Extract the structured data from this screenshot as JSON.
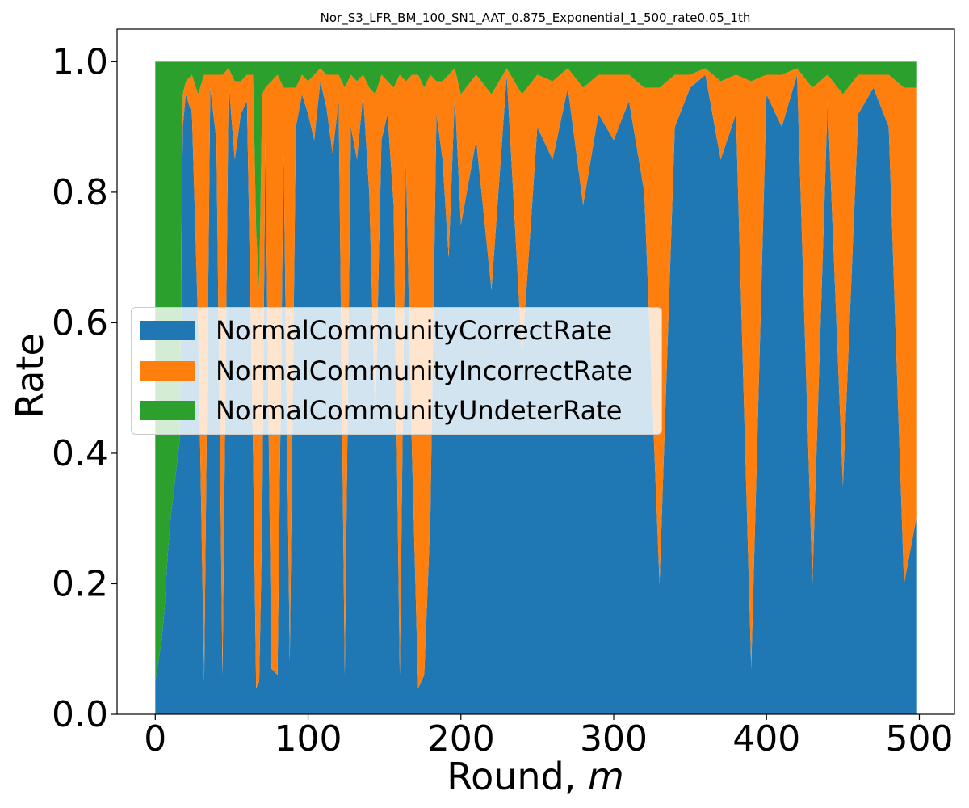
{
  "chart_data": {
    "type": "area",
    "stacked": true,
    "title": "Nor_S3_LFR_BM_100_SN1_AAT_0.875_Exponential_1_500_rate0.05_1th",
    "xlabel": "Round, ",
    "xlabel_italic": "m",
    "ylabel": "Rate",
    "xlim": [
      -25,
      523
    ],
    "ylim": [
      0.0,
      1.05
    ],
    "xticks": [
      0,
      100,
      200,
      300,
      400,
      500
    ],
    "xtick_labels": [
      "0",
      "100",
      "200",
      "300",
      "400",
      "500"
    ],
    "yticks": [
      0.0,
      0.2,
      0.4,
      0.6,
      0.8,
      1.0
    ],
    "ytick_labels": [
      "0.0",
      "0.2",
      "0.4",
      "0.6",
      "0.8",
      "1.0"
    ],
    "grid": false,
    "legend_position": "center-left",
    "x": [
      0,
      2,
      4,
      6,
      8,
      10,
      12,
      14,
      16,
      18,
      20,
      24,
      28,
      32,
      36,
      40,
      44,
      48,
      52,
      56,
      60,
      64,
      66,
      68,
      70,
      72,
      76,
      80,
      84,
      88,
      92,
      96,
      100,
      104,
      108,
      112,
      116,
      120,
      124,
      128,
      132,
      136,
      140,
      144,
      148,
      152,
      156,
      160,
      164,
      168,
      172,
      176,
      180,
      184,
      188,
      192,
      196,
      200,
      210,
      220,
      230,
      240,
      250,
      260,
      270,
      280,
      290,
      300,
      310,
      320,
      330,
      340,
      350,
      360,
      370,
      380,
      390,
      400,
      410,
      420,
      430,
      440,
      450,
      460,
      470,
      480,
      490,
      498
    ],
    "series": [
      {
        "name": "NormalCommunityCorrectRate",
        "color": "#1f77b4",
        "values": [
          0.05,
          0.08,
          0.11,
          0.16,
          0.24,
          0.3,
          0.34,
          0.38,
          0.42,
          0.9,
          0.95,
          0.92,
          0.6,
          0.05,
          0.96,
          0.88,
          0.06,
          0.97,
          0.85,
          0.92,
          0.94,
          0.4,
          0.04,
          0.05,
          0.3,
          0.88,
          0.07,
          0.06,
          0.86,
          0.08,
          0.9,
          0.95,
          0.92,
          0.88,
          0.97,
          0.93,
          0.86,
          0.94,
          0.06,
          0.9,
          0.85,
          0.95,
          0.8,
          0.45,
          0.88,
          0.92,
          0.78,
          0.06,
          0.85,
          0.4,
          0.04,
          0.06,
          0.3,
          0.92,
          0.85,
          0.7,
          0.95,
          0.75,
          0.88,
          0.65,
          0.98,
          0.55,
          0.9,
          0.85,
          0.96,
          0.78,
          0.92,
          0.88,
          0.94,
          0.8,
          0.2,
          0.9,
          0.96,
          0.98,
          0.85,
          0.92,
          0.07,
          0.95,
          0.9,
          0.98,
          0.2,
          0.94,
          0.35,
          0.92,
          0.96,
          0.9,
          0.2,
          0.3
        ],
        "note": "Highly oscillating series; values sampled approximately"
      },
      {
        "name": "NormalCommunityIncorrectRate",
        "color": "#ff7f0e",
        "values": [
          0.0,
          0.0,
          0.0,
          0.0,
          0.0,
          0.0,
          0.0,
          0.0,
          0.0,
          0.05,
          0.02,
          0.06,
          0.35,
          0.93,
          0.02,
          0.1,
          0.92,
          0.02,
          0.12,
          0.05,
          0.04,
          0.58,
          0.7,
          0.6,
          0.65,
          0.08,
          0.9,
          0.92,
          0.1,
          0.88,
          0.06,
          0.03,
          0.05,
          0.1,
          0.02,
          0.05,
          0.12,
          0.04,
          0.9,
          0.08,
          0.12,
          0.03,
          0.16,
          0.5,
          0.1,
          0.05,
          0.18,
          0.92,
          0.12,
          0.58,
          0.94,
          0.9,
          0.68,
          0.05,
          0.12,
          0.28,
          0.04,
          0.2,
          0.1,
          0.3,
          0.01,
          0.4,
          0.08,
          0.12,
          0.03,
          0.18,
          0.06,
          0.1,
          0.04,
          0.16,
          0.76,
          0.08,
          0.02,
          0.01,
          0.12,
          0.06,
          0.9,
          0.03,
          0.08,
          0.01,
          0.76,
          0.04,
          0.6,
          0.06,
          0.02,
          0.08,
          0.76,
          0.66
        ]
      },
      {
        "name": "NormalCommunityUndeterRate",
        "color": "#2ca02c",
        "values": [
          0.95,
          0.92,
          0.89,
          0.84,
          0.76,
          0.7,
          0.66,
          0.62,
          0.58,
          0.05,
          0.03,
          0.02,
          0.05,
          0.02,
          0.02,
          0.02,
          0.02,
          0.01,
          0.03,
          0.03,
          0.02,
          0.02,
          0.26,
          0.35,
          0.05,
          0.04,
          0.03,
          0.02,
          0.04,
          0.04,
          0.04,
          0.02,
          0.03,
          0.02,
          0.01,
          0.02,
          0.02,
          0.02,
          0.04,
          0.02,
          0.03,
          0.02,
          0.04,
          0.05,
          0.02,
          0.03,
          0.04,
          0.02,
          0.03,
          0.02,
          0.02,
          0.04,
          0.02,
          0.03,
          0.03,
          0.02,
          0.01,
          0.05,
          0.02,
          0.05,
          0.01,
          0.05,
          0.02,
          0.03,
          0.01,
          0.04,
          0.02,
          0.02,
          0.02,
          0.04,
          0.04,
          0.02,
          0.02,
          0.01,
          0.03,
          0.02,
          0.03,
          0.02,
          0.02,
          0.01,
          0.04,
          0.02,
          0.05,
          0.02,
          0.02,
          0.02,
          0.04,
          0.04
        ]
      }
    ]
  }
}
